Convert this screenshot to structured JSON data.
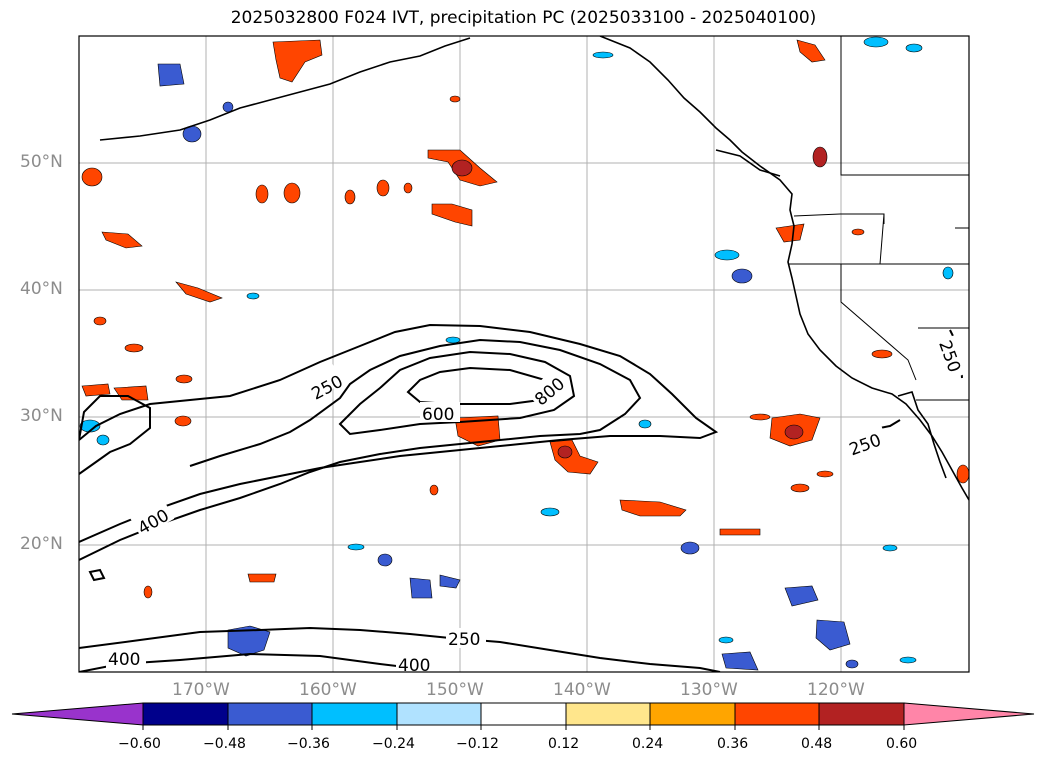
{
  "title": "2025032800 F024 IVT, precipitation PC (2025033100 - 2025040100)",
  "lat_labels": [
    "50°N",
    "40°N",
    "30°N",
    "20°N"
  ],
  "lon_labels": [
    "170°W",
    "160°W",
    "150°W",
    "140°W",
    "130°W",
    "120°W"
  ],
  "contour_labels": [
    "250",
    "600",
    "800",
    "400",
    "250",
    "400",
    "400",
    "250",
    "250"
  ],
  "colorbar": {
    "ticks": [
      "−0.60",
      "−0.48",
      "−0.36",
      "−0.24",
      "−0.12",
      "0.12",
      "0.24",
      "0.36",
      "0.48",
      "0.60"
    ],
    "colors": [
      "#9933cc",
      "#00008b",
      "#3a5bd1",
      "#00bfff",
      "#b0e2ff",
      "#ffffff",
      "#ffe68c",
      "#ffa500",
      "#ff4500",
      "#b22222",
      "#ff85a8"
    ]
  },
  "map_extent": {
    "lon": [
      -180,
      -110
    ],
    "lat": [
      10,
      60
    ]
  },
  "chart_data": {
    "type": "heatmap",
    "title": "2025032800 F024 IVT, precipitation PC (2025033100 - 2025040100)",
    "ivt_contour_levels": [
      250,
      400,
      600,
      800
    ],
    "colorbar_levels": [
      -0.6,
      -0.48,
      -0.36,
      -0.24,
      -0.12,
      0.12,
      0.24,
      0.36,
      0.48,
      0.6
    ]
  }
}
